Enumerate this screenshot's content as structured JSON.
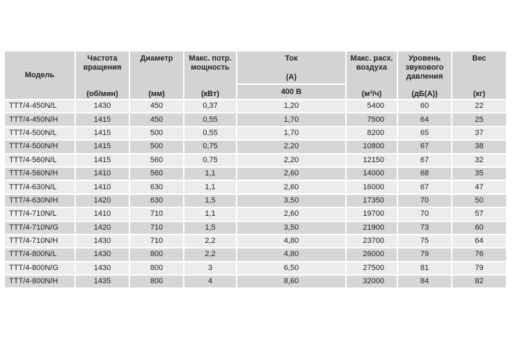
{
  "headers": {
    "model": "Модель",
    "speed": {
      "label": "Частота вращения",
      "unit": "(об/мин)"
    },
    "diameter": {
      "label": "Диаметр",
      "unit": "(мм)"
    },
    "power": {
      "label": "Макс. потр. мощность",
      "unit": "(кВт)"
    },
    "current": {
      "label": "Ток",
      "unit": "(А)",
      "sub": "400 В"
    },
    "airflow": {
      "label": "Макс. расх. воздуха",
      "unit": "(м³/ч)"
    },
    "noise": {
      "label": "Уровень звукового давления",
      "unit": "(дБ(А))"
    },
    "weight": {
      "label": "Вес",
      "unit": "(кг)"
    }
  },
  "rows": [
    [
      "TTT/4-450N/L",
      "1430",
      "450",
      "0,37",
      "1,20",
      "5400",
      "60",
      "22"
    ],
    [
      "TTT/4-450N/H",
      "1415",
      "450",
      "0,55",
      "1,70",
      "7500",
      "64",
      "25"
    ],
    [
      "TTT/4-500N/L",
      "1415",
      "500",
      "0,55",
      "1,70",
      "8200",
      "65",
      "37"
    ],
    [
      "TTT/4-500N/H",
      "1415",
      "500",
      "0,75",
      "2,20",
      "10800",
      "67",
      "38"
    ],
    [
      "TTT/4-560N/L",
      "1415",
      "560",
      "0,75",
      "2,20",
      "12150",
      "67",
      "32"
    ],
    [
      "TTT/4-560N/H",
      "1410",
      "560",
      "1,1",
      "2,60",
      "14000",
      "68",
      "35"
    ],
    [
      "TTT/4-630N/L",
      "1410",
      "630",
      "1,1",
      "2,60",
      "16000",
      "67",
      "47"
    ],
    [
      "TTT/4-630N/H",
      "1420",
      "630",
      "1,5",
      "3,50",
      "17350",
      "70",
      "50"
    ],
    [
      "TTT/4-710N/L",
      "1410",
      "710",
      "1,1",
      "2,60",
      "19700",
      "70",
      "57"
    ],
    [
      "TTT/4-710N/G",
      "1420",
      "710",
      "1,5",
      "3,50",
      "21900",
      "73",
      "60"
    ],
    [
      "TTT/4-710N/H",
      "1430",
      "710",
      "2,2",
      "4,80",
      "23700",
      "75",
      "64"
    ],
    [
      "TTT/4-800N/L",
      "1430",
      "800",
      "2,2",
      "4,80",
      "26000",
      "79",
      "76"
    ],
    [
      "TTT/4-800N/G",
      "1430",
      "800",
      "3",
      "6,50",
      "27500",
      "81",
      "79"
    ],
    [
      "TTT/4-800N/H",
      "1435",
      "800",
      "4",
      "8,60",
      "32000",
      "84",
      "82"
    ]
  ]
}
